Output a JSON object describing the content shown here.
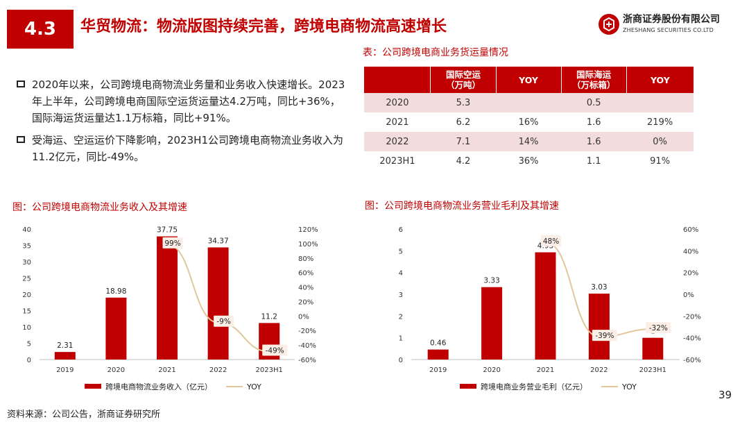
{
  "section_number": "4.3",
  "title": "华贸物流：物流版图持续完善，跨境电商物流高速增长",
  "logo": {
    "name_cn": "浙商证券股份有限公司",
    "name_en": "ZHESHANG SECURITIES CO.LTD",
    "brand_color": "#c00000"
  },
  "bullets": [
    "2020年以来，公司跨境电商物流业务量和业务收入快速增长。2023年上半年，公司跨境电商国际空运货运量达4.2万吨，同比+36%，国际海运货运量达1.1万标箱，同比+91%。",
    "受海运、空运运价下降影响，2023H1公司跨境电商物流业务收入为11.2亿元，同比-49%。"
  ],
  "table": {
    "caption": "表：公司跨境电商业务货运量情况",
    "headers": [
      "",
      "国际空运\n（万吨）",
      "YOY",
      "国际海运\n（万标箱）",
      "YOY"
    ],
    "rows": [
      [
        "2020",
        "5.3",
        "",
        "0.5",
        ""
      ],
      [
        "2021",
        "6.2",
        "16%",
        "1.6",
        "219%"
      ],
      [
        "2022",
        "7.1",
        "14%",
        "1.6",
        "0%"
      ],
      [
        "2023H1",
        "4.2",
        "36%",
        "1.1",
        "91%"
      ]
    ]
  },
  "chart_data": [
    {
      "type": "bar",
      "title": "图：公司跨境电商物流业务收入及其增速",
      "categories": [
        "2019",
        "2020",
        "2021",
        "2022",
        "2023H1"
      ],
      "series": [
        {
          "name": "跨境电商物流业务收入（亿元）",
          "values": [
            2.31,
            18.98,
            37.75,
            34.37,
            11.2
          ],
          "labels": [
            "2.31",
            "18.98",
            "37.75",
            "34.37",
            "11.2"
          ],
          "color": "#c00000",
          "axis": "left"
        },
        {
          "name": "YOY",
          "type": "line",
          "values": [
            null,
            null,
            99,
            -9,
            -49
          ],
          "labels": [
            "",
            "",
            "99%",
            "-9%",
            "-49%"
          ],
          "color": "#e2c79a",
          "axis": "right"
        }
      ],
      "ylim": [
        0,
        40
      ],
      "yticks": [
        "0",
        "5",
        "10",
        "15",
        "20",
        "25",
        "30",
        "35",
        "40"
      ],
      "y2lim": [
        -60,
        120
      ],
      "y2ticks": [
        "-60%",
        "-40%",
        "-20%",
        "0%",
        "20%",
        "40%",
        "60%",
        "80%",
        "100%",
        "120%"
      ],
      "legend": "bottom",
      "grid": false
    },
    {
      "type": "bar",
      "title": "图：公司跨境电商物流业务营业毛利及其增速",
      "categories": [
        "2019",
        "2020",
        "2021",
        "2022",
        "2023H1"
      ],
      "series": [
        {
          "name": "跨境电商业务营业毛利（亿元）",
          "values": [
            0.46,
            3.33,
            4.93,
            3.03,
            1.0
          ],
          "labels": [
            "0.46",
            "3.33",
            "4.93",
            "3.03",
            "1"
          ],
          "color": "#c00000",
          "axis": "left"
        },
        {
          "name": "YOY",
          "type": "line",
          "values": [
            null,
            null,
            48,
            -39,
            -32
          ],
          "labels": [
            "",
            "",
            "48%",
            "-39%",
            "-32%"
          ],
          "color": "#e2c79a",
          "axis": "right"
        }
      ],
      "ylim": [
        0,
        6
      ],
      "yticks": [
        "0",
        "1",
        "2",
        "3",
        "4",
        "5",
        "6"
      ],
      "y2lim": [
        -60,
        60
      ],
      "y2ticks": [
        "-60%",
        "-40%",
        "-20%",
        "0%",
        "20%",
        "40%",
        "60%"
      ],
      "legend": "bottom",
      "grid": false
    }
  ],
  "footnote": "资料来源：公司公告，浙商证券研究所",
  "page_number": "39"
}
